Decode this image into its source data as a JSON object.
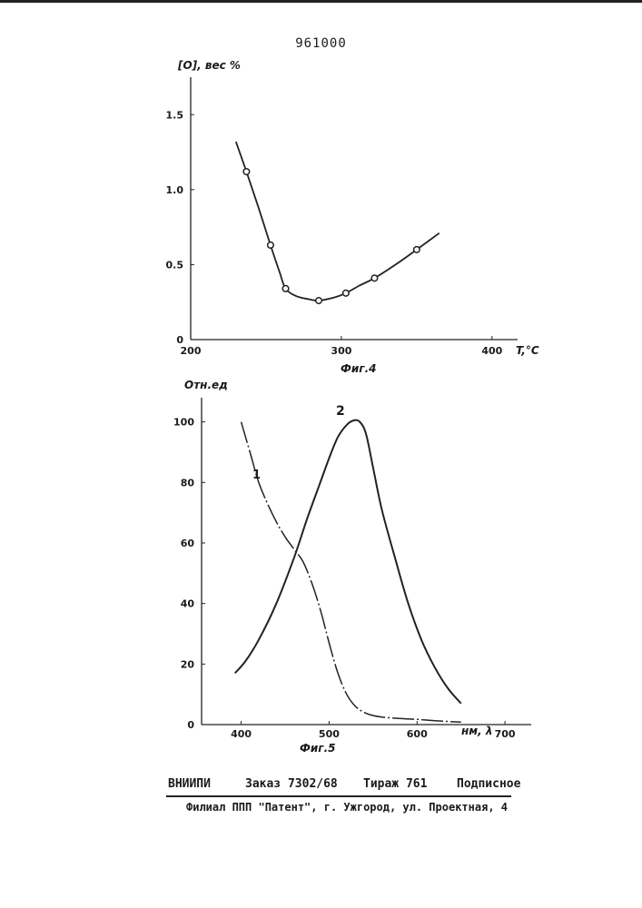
{
  "patent_number": "961000",
  "chart_data": [
    {
      "type": "line",
      "caption": "Фиг.4",
      "ylabel": "[O], вес %",
      "xlabel": "T,°C",
      "xlim": [
        200,
        420
      ],
      "ylim": [
        0,
        1.75
      ],
      "x_ticks": [
        "200",
        "300",
        "400"
      ],
      "y_ticks": [
        "0",
        "0.5",
        "1.0",
        "1.5"
      ],
      "series": [
        {
          "markers": true,
          "points": [
            [
              237,
              1.12
            ],
            [
              253,
              0.63
            ],
            [
              263,
              0.34
            ],
            [
              285,
              0.26
            ],
            [
              303,
              0.31
            ],
            [
              322,
              0.41
            ],
            [
              350,
              0.6
            ]
          ],
          "curve": [
            [
              230,
              1.32
            ],
            [
              237,
              1.12
            ],
            [
              245,
              0.88
            ],
            [
              253,
              0.63
            ],
            [
              259,
              0.45
            ],
            [
              263,
              0.34
            ],
            [
              270,
              0.29
            ],
            [
              278,
              0.27
            ],
            [
              285,
              0.26
            ],
            [
              295,
              0.28
            ],
            [
              303,
              0.31
            ],
            [
              312,
              0.36
            ],
            [
              322,
              0.41
            ],
            [
              336,
              0.5
            ],
            [
              350,
              0.6
            ],
            [
              365,
              0.71
            ]
          ]
        }
      ]
    },
    {
      "type": "line",
      "caption": "Фиг.5",
      "ylabel": "Отн.ед",
      "xlabel": "нм, λ",
      "xlim": [
        355,
        735
      ],
      "ylim": [
        0,
        108
      ],
      "x_ticks": [
        "400",
        "500",
        "600",
        "700"
      ],
      "y_ticks": [
        "0",
        "20",
        "40",
        "60",
        "80",
        "100"
      ],
      "series": [
        {
          "name": "1",
          "dashed_segments": true,
          "points": [
            [
              400,
              100
            ],
            [
              410,
              90
            ],
            [
              420,
              80
            ],
            [
              430,
              73
            ],
            [
              440,
              67
            ],
            [
              450,
              62
            ],
            [
              460,
              58
            ],
            [
              470,
              54
            ],
            [
              480,
              47
            ],
            [
              490,
              38
            ],
            [
              500,
              27
            ],
            [
              510,
              17
            ],
            [
              520,
              10
            ],
            [
              530,
              6
            ],
            [
              540,
              4
            ],
            [
              550,
              3
            ],
            [
              560,
              2.5
            ],
            [
              580,
              2
            ],
            [
              600,
              1.7
            ],
            [
              620,
              1.3
            ],
            [
              650,
              0.8
            ]
          ]
        },
        {
          "name": "2",
          "dashed_segments": false,
          "points": [
            [
              393,
              17
            ],
            [
              405,
              21
            ],
            [
              420,
              28
            ],
            [
              440,
              40
            ],
            [
              460,
              55
            ],
            [
              475,
              68
            ],
            [
              490,
              80
            ],
            [
              500,
              88
            ],
            [
              510,
              95
            ],
            [
              520,
              99
            ],
            [
              528,
              100.5
            ],
            [
              535,
              100
            ],
            [
              542,
              96
            ],
            [
              550,
              85
            ],
            [
              560,
              71
            ],
            [
              575,
              55
            ],
            [
              590,
              40
            ],
            [
              605,
              28
            ],
            [
              620,
              19
            ],
            [
              635,
              12
            ],
            [
              650,
              7
            ]
          ]
        }
      ]
    }
  ],
  "footer": {
    "org": "ВНИИПИ",
    "order": "Заказ 7302/68",
    "circulation": "Тираж 761",
    "subscription": "Подписное",
    "address": "Филиал ППП \"Патент\", г. Ужгород, ул. Проектная, 4"
  }
}
